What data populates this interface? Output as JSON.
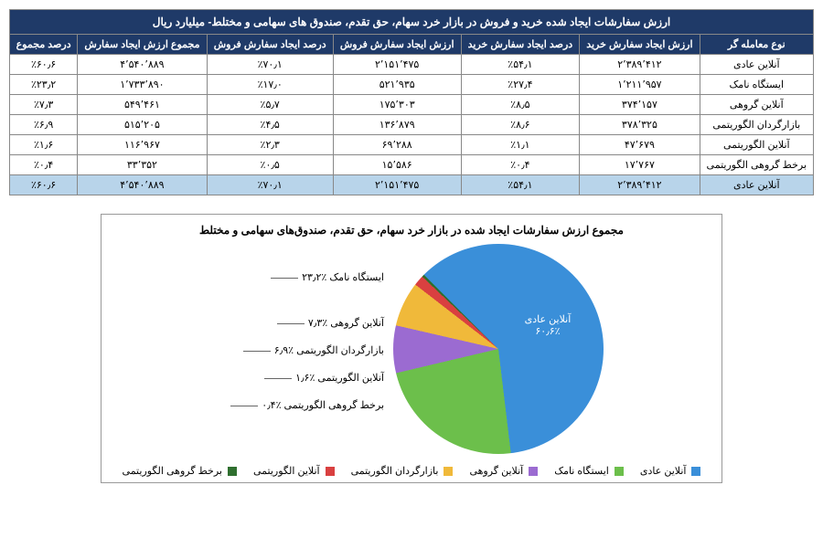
{
  "table": {
    "title": "ارزش سفارشات ایجاد شده خرید و فروش در بازار خرد سهام، حق تقدم، صندوق های سهامی و مختلط- میلیارد ریال",
    "columns": [
      "نوع معامله گر",
      "ارزش ایجاد سفارش خرید",
      "درصد ایجاد سفارش خرید",
      "ارزش ایجاد سفارش فروش",
      "درصد ایجاد سفارش فروش",
      "مجموع ارزش ایجاد سفارش",
      "درصد مجموع"
    ],
    "rows": [
      [
        "آنلاین عادی",
        "۲٬۳۸۹٬۴۱۲",
        "٪۵۴٫۱",
        "۲٬۱۵۱٬۴۷۵",
        "٪۷۰٫۱",
        "۴٬۵۴۰٬۸۸۹",
        "٪۶۰٫۶"
      ],
      [
        "ایستگاه نامک",
        "۱٬۲۱۱٬۹۵۷",
        "٪۲۷٫۴",
        "۵۲۱٬۹۳۵",
        "٪۱۷٫۰",
        "۱٬۷۳۳٬۸۹۰",
        "٪۲۳٫۲"
      ],
      [
        "آنلاین گروهی",
        "۳۷۴٬۱۵۷",
        "٪۸٫۵",
        "۱۷۵٬۳۰۳",
        "٪۵٫۷",
        "۵۴۹٬۴۶۱",
        "٪۷٫۳"
      ],
      [
        "بازارگردان الگوریتمی",
        "۳۷۸٬۳۲۵",
        "٪۸٫۶",
        "۱۳۶٬۸۷۹",
        "٪۴٫۵",
        "۵۱۵٬۲۰۵",
        "٪۶٫۹"
      ],
      [
        "آنلاین الگوریتمی",
        "۴۷٬۶۷۹",
        "٪۱٫۱",
        "۶۹٬۲۸۸",
        "٪۲٫۳",
        "۱۱۶٬۹۶۷",
        "٪۱٫۶"
      ],
      [
        "برخط گروهی الگوریتمی",
        "۱۷٬۷۶۷",
        "٪۰٫۴",
        "۱۵٬۵۸۶",
        "٪۰٫۵",
        "۳۳٬۳۵۲",
        "٪۰٫۴"
      ],
      [
        "آنلاین عادی",
        "۲٬۳۸۹٬۴۱۲",
        "٪۵۴٫۱",
        "۲٬۱۵۱٬۴۷۵",
        "٪۷۰٫۱",
        "۴٬۵۴۰٬۸۸۹",
        "٪۶۰٫۶"
      ]
    ],
    "highlight_row_index": 6,
    "header_bg": "#1f3a68",
    "header_fg": "#ffffff",
    "highlight_bg": "#b8d4ea"
  },
  "chart": {
    "title": "مجموع ارزش سفارشات ایجاد شده در بازار خرد سهام، حق تقدم، صندوق‌های سهامی و مختلط",
    "type": "pie",
    "background": "#ffffff",
    "start_angle": -45,
    "slices": [
      {
        "label": "آنلاین عادی",
        "pct": 60.6,
        "color": "#3a8fd9",
        "callout": "آنلاین عادی ٪۶۰٫۶",
        "inside": true
      },
      {
        "label": "ایستگاه نامک",
        "pct": 23.2,
        "color": "#6cbf4b",
        "callout": "ایستگاه نامک ٪۲۳٫۲"
      },
      {
        "label": "آنلاین گروهی",
        "pct": 7.3,
        "color": "#9b6bd1",
        "callout": "آنلاین گروهی ٪۷٫۳"
      },
      {
        "label": "بازارگردان الگوریتمی",
        "pct": 6.9,
        "color": "#f0b93a",
        "callout": "بازارگردان الگوریتمی ٪۶٫۹"
      },
      {
        "label": "آنلاین الگوریتمی",
        "pct": 1.6,
        "color": "#d94040",
        "callout": "آنلاین الگوریتمی ٪۱٫۶"
      },
      {
        "label": "برخط گروهی الگوریتمی",
        "pct": 0.4,
        "color": "#2f6f2f",
        "callout": "برخط گروهی الگوریتمی ٪۰٫۴"
      }
    ],
    "legend_order": [
      "آنلاین عادی",
      "ایستگاه نامک",
      "آنلاین گروهی",
      "بازارگردان الگوریتمی",
      "آنلاین الگوریتمی",
      "برخط گروهی الگوریتمی"
    ]
  }
}
